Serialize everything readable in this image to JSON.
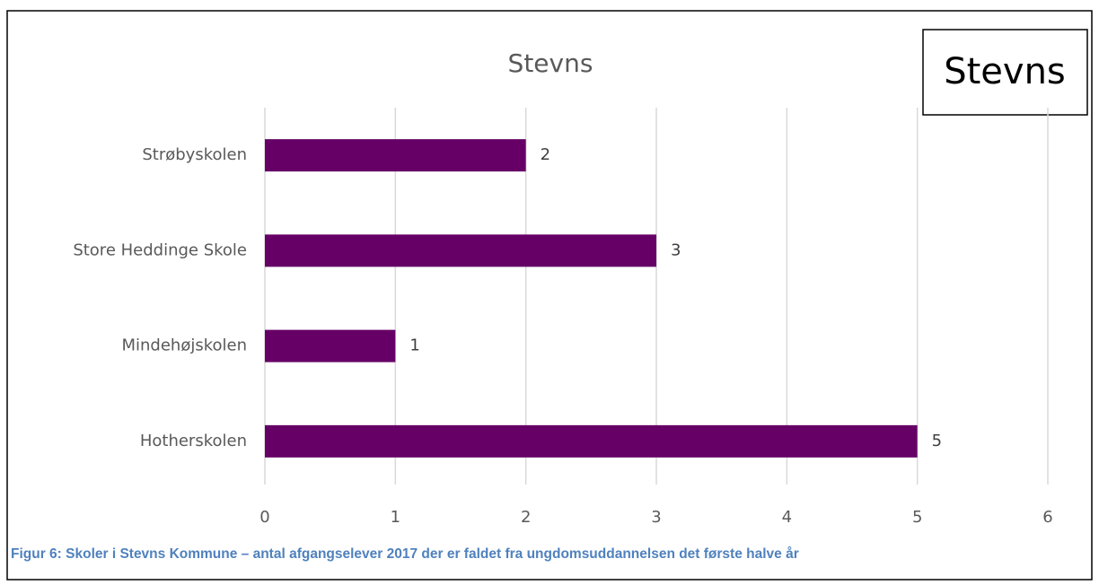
{
  "chart_data": {
    "type": "bar",
    "orientation": "horizontal",
    "title": "Stevns",
    "annotation": "Stevns",
    "caption": "Figur 6: Skoler i Stevns Kommune – antal afgangselever 2017 der er faldet fra ungdomsuddannelsen det første halve år",
    "categories": [
      "Strøbyskolen",
      "Store Heddinge Skole",
      "Mindehøjskolen",
      "Hotherskolen"
    ],
    "values": [
      2,
      3,
      1,
      5
    ],
    "color": "#660066",
    "xlim": [
      0,
      6
    ],
    "xticks": [
      0,
      1,
      2,
      3,
      4,
      5,
      6
    ],
    "grid": true
  }
}
